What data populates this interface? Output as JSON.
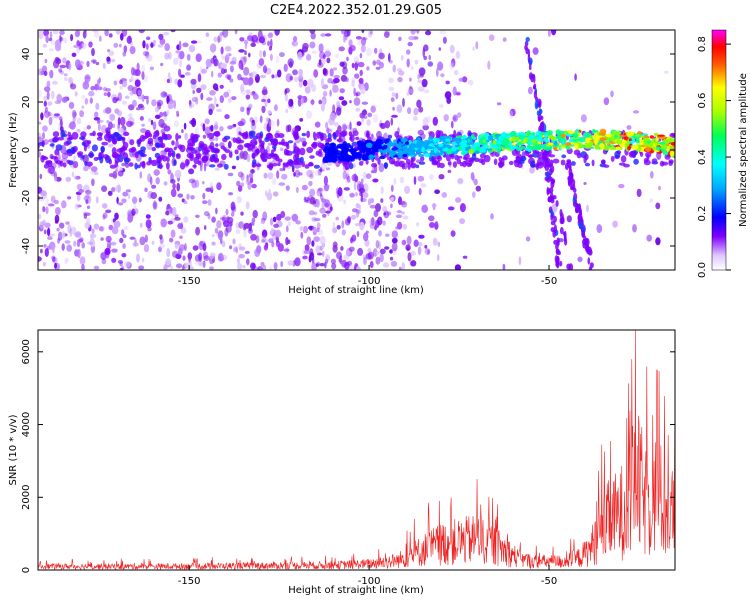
{
  "chart_data": [
    {
      "type": "heatmap",
      "title": "C2E4.2022.352.01.29.G05",
      "xlabel": "Height of straight line (km)",
      "ylabel": "Frequency (Hz)",
      "xlim": [
        -192,
        -15
      ],
      "ylim": [
        -50,
        50
      ],
      "x_ticks": [
        -150,
        -100,
        -50
      ],
      "y_ticks": [
        -40,
        -20,
        0,
        20,
        40
      ],
      "colorbar": {
        "label": "Normalized spectral amplitude",
        "range": [
          0,
          0.85
        ],
        "ticks": [
          0.0,
          0.2,
          0.4,
          0.6,
          0.8
        ],
        "colors": [
          "#ffffff",
          "#7f00ff",
          "#0000ff",
          "#00ffff",
          "#00ff00",
          "#ffff00",
          "#ff0000",
          "#ff00ff"
        ]
      },
      "features": {
        "main_band": {
          "description": "narrow high-amplitude signal near 0 Hz",
          "x": [
            -110,
            -100,
            -90,
            -80,
            -70,
            -60,
            -50,
            -40,
            -30,
            -20,
            -15
          ],
          "y": [
            -1,
            0,
            1,
            1.5,
            2.5,
            3.5,
            4,
            4.5,
            4,
            3,
            1
          ]
        },
        "diagonal_lines": [
          {
            "x": [
              -57,
              -44
            ],
            "y": [
              50,
              -50
            ]
          },
          {
            "x": [
              -53,
              -47
            ],
            "y": [
              20,
              -50
            ]
          },
          {
            "x": [
              -45,
              -38
            ],
            "y": [
              -5,
              -50
            ]
          }
        ]
      }
    },
    {
      "type": "line",
      "xlabel": "Height of straight line (km)",
      "ylabel": "SNR (10 * v/v)",
      "xlim": [
        -192,
        -15
      ],
      "ylim": [
        0,
        6600
      ],
      "x_ticks": [
        -150,
        -100,
        -50
      ],
      "y_ticks": [
        0,
        2000,
        4000,
        6000
      ],
      "line_color": "#ee2222",
      "envelope": {
        "x": [
          -192,
          -160,
          -130,
          -110,
          -100,
          -92,
          -88,
          -84,
          -80,
          -75,
          -70,
          -66,
          -62,
          -58,
          -54,
          -50,
          -46,
          -42,
          -39,
          -37,
          -34,
          -30,
          -27,
          -25,
          -23,
          -20,
          -17,
          -15
        ],
        "y": [
          150,
          150,
          180,
          200,
          260,
          400,
          650,
          900,
          1100,
          1200,
          1300,
          1100,
          800,
          450,
          350,
          350,
          350,
          500,
          800,
          1300,
          2000,
          2400,
          3300,
          3600,
          2800,
          3300,
          2300,
          2600
        ]
      },
      "peaks": [
        {
          "x": -26,
          "y": 6600
        },
        {
          "x": -20,
          "y": 5500
        },
        {
          "x": -27,
          "y": 5800
        },
        {
          "x": -15,
          "y": 5000
        },
        {
          "x": -70,
          "y": 2500
        }
      ]
    }
  ]
}
